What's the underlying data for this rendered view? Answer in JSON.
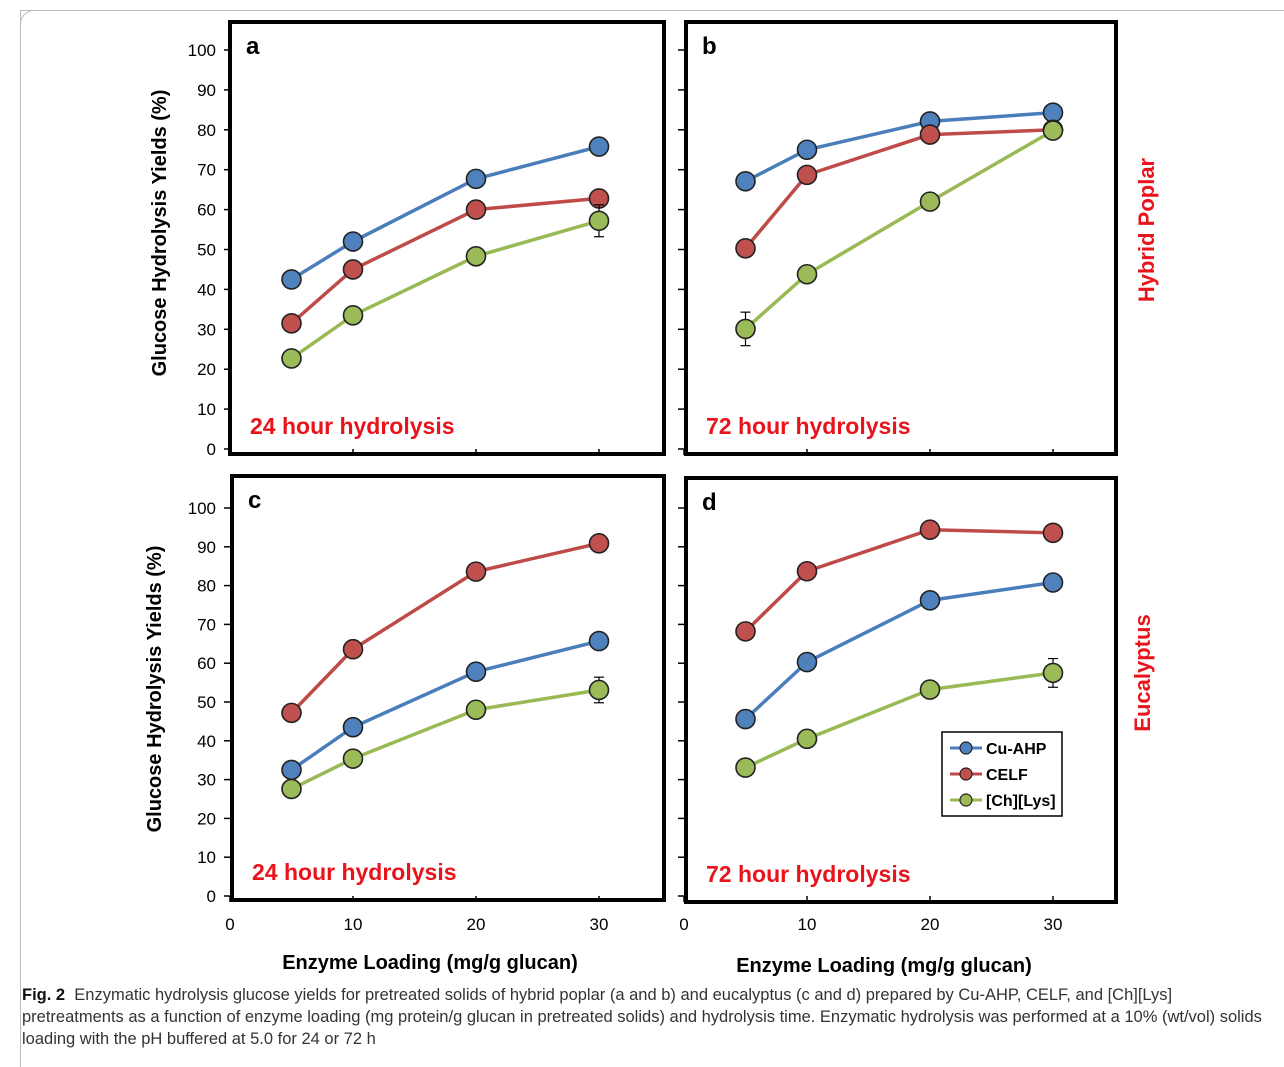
{
  "figure": {
    "ylabel": "Glucose Hydrolysis Yields (%)",
    "xlabel": "Enzyme Loading (mg/g glucan)",
    "row_labels": [
      "Hybrid Poplar",
      "Eucalyptus"
    ],
    "row_label_color": "#e8131b",
    "annotation_color": "#e8131b",
    "caption": {
      "label": "Fig. 2",
      "text": "Enzymatic hydrolysis glucose yields for pretreated solids of hybrid poplar (a and b) and eucalyptus (c and d) prepared by Cu-AHP, CELF, and [Ch][Lys] pretreatments as a function of enzyme loading (mg protein/g glucan in pretreated solids) and hydrolysis time. Enzymatic hydrolysis was performed at a 10% (wt/vol) solids loading with the pH buffered at 5.0 for 24 or 72 h"
    }
  },
  "legend": {
    "entries": [
      {
        "name": "Cu-AHP",
        "color": "#4a7ebb",
        "fill": "#4f81bd"
      },
      {
        "name": "CELF",
        "color": "#be4b48",
        "fill": "#c0504d"
      },
      {
        "name": "[Ch][Lys]",
        "color": "#98b954",
        "fill": "#9bbb59"
      }
    ]
  },
  "chart_data": [
    {
      "type": "line",
      "panel": "a",
      "annotation": "24 hour hydrolysis",
      "x": [
        5,
        10,
        20,
        30
      ],
      "xticks": [
        0,
        10,
        20,
        30
      ],
      "xlim": [
        0,
        35
      ],
      "ylim": [
        0,
        100
      ],
      "yticks": [
        0,
        10,
        20,
        30,
        40,
        50,
        60,
        70,
        80,
        90,
        100
      ],
      "series": [
        {
          "name": "Cu-AHP",
          "values": [
            42.5,
            52,
            67.7,
            75.8
          ]
        },
        {
          "name": "CELF",
          "values": [
            31.5,
            45,
            60,
            62.8
          ]
        },
        {
          "name": "[Ch][Lys]",
          "values": [
            22.7,
            33.5,
            48.3,
            57.2
          ],
          "errors": [
            0,
            0,
            0,
            4
          ]
        }
      ]
    },
    {
      "type": "line",
      "panel": "b",
      "annotation": "72 hour hydrolysis",
      "x": [
        5,
        10,
        20,
        30
      ],
      "xticks": [
        0,
        10,
        20,
        30
      ],
      "xlim": [
        0,
        35
      ],
      "ylim": [
        0,
        100
      ],
      "yticks": [
        0,
        10,
        20,
        30,
        40,
        50,
        60,
        70,
        80,
        90,
        100
      ],
      "series": [
        {
          "name": "Cu-AHP",
          "values": [
            67.1,
            75,
            82.1,
            84.3
          ]
        },
        {
          "name": "CELF",
          "values": [
            50.3,
            68.7,
            78.8,
            80
          ]
        },
        {
          "name": "[Ch][Lys]",
          "values": [
            30.1,
            43.8,
            62,
            79.8
          ],
          "errors": [
            4.2,
            0,
            0,
            0
          ]
        }
      ]
    },
    {
      "type": "line",
      "panel": "c",
      "annotation": "24 hour hydrolysis",
      "x": [
        5,
        10,
        20,
        30
      ],
      "xticks": [
        0,
        10,
        20,
        30
      ],
      "xlim": [
        0,
        35
      ],
      "ylim": [
        0,
        100
      ],
      "yticks": [
        0,
        10,
        20,
        30,
        40,
        50,
        60,
        70,
        80,
        90,
        100
      ],
      "series": [
        {
          "name": "Cu-AHP",
          "values": [
            32.5,
            43.5,
            57.8,
            65.7
          ]
        },
        {
          "name": "CELF",
          "values": [
            47.2,
            63.6,
            83.6,
            90.9
          ]
        },
        {
          "name": "[Ch][Lys]",
          "values": [
            27.6,
            35.4,
            48,
            53.1
          ],
          "errors": [
            0,
            0,
            0,
            3.3
          ]
        }
      ]
    },
    {
      "type": "line",
      "panel": "d",
      "annotation": "72 hour hydrolysis",
      "x": [
        5,
        10,
        20,
        30
      ],
      "xticks": [
        0,
        10,
        20,
        30
      ],
      "xlim": [
        0,
        35
      ],
      "ylim": [
        0,
        100
      ],
      "yticks": [
        0,
        10,
        20,
        30,
        40,
        50,
        60,
        70,
        80,
        90,
        100
      ],
      "series": [
        {
          "name": "Cu-AHP",
          "values": [
            45.6,
            60.3,
            76.2,
            80.8
          ],
          "errors": [
            2.2,
            0,
            0,
            0
          ]
        },
        {
          "name": "CELF",
          "values": [
            68.2,
            83.7,
            94.4,
            93.6
          ]
        },
        {
          "name": "[Ch][Lys]",
          "values": [
            33.1,
            40.5,
            53.2,
            57.5
          ],
          "errors": [
            0,
            0,
            0,
            3.7
          ]
        }
      ],
      "legend": "right, lower-middle"
    }
  ]
}
